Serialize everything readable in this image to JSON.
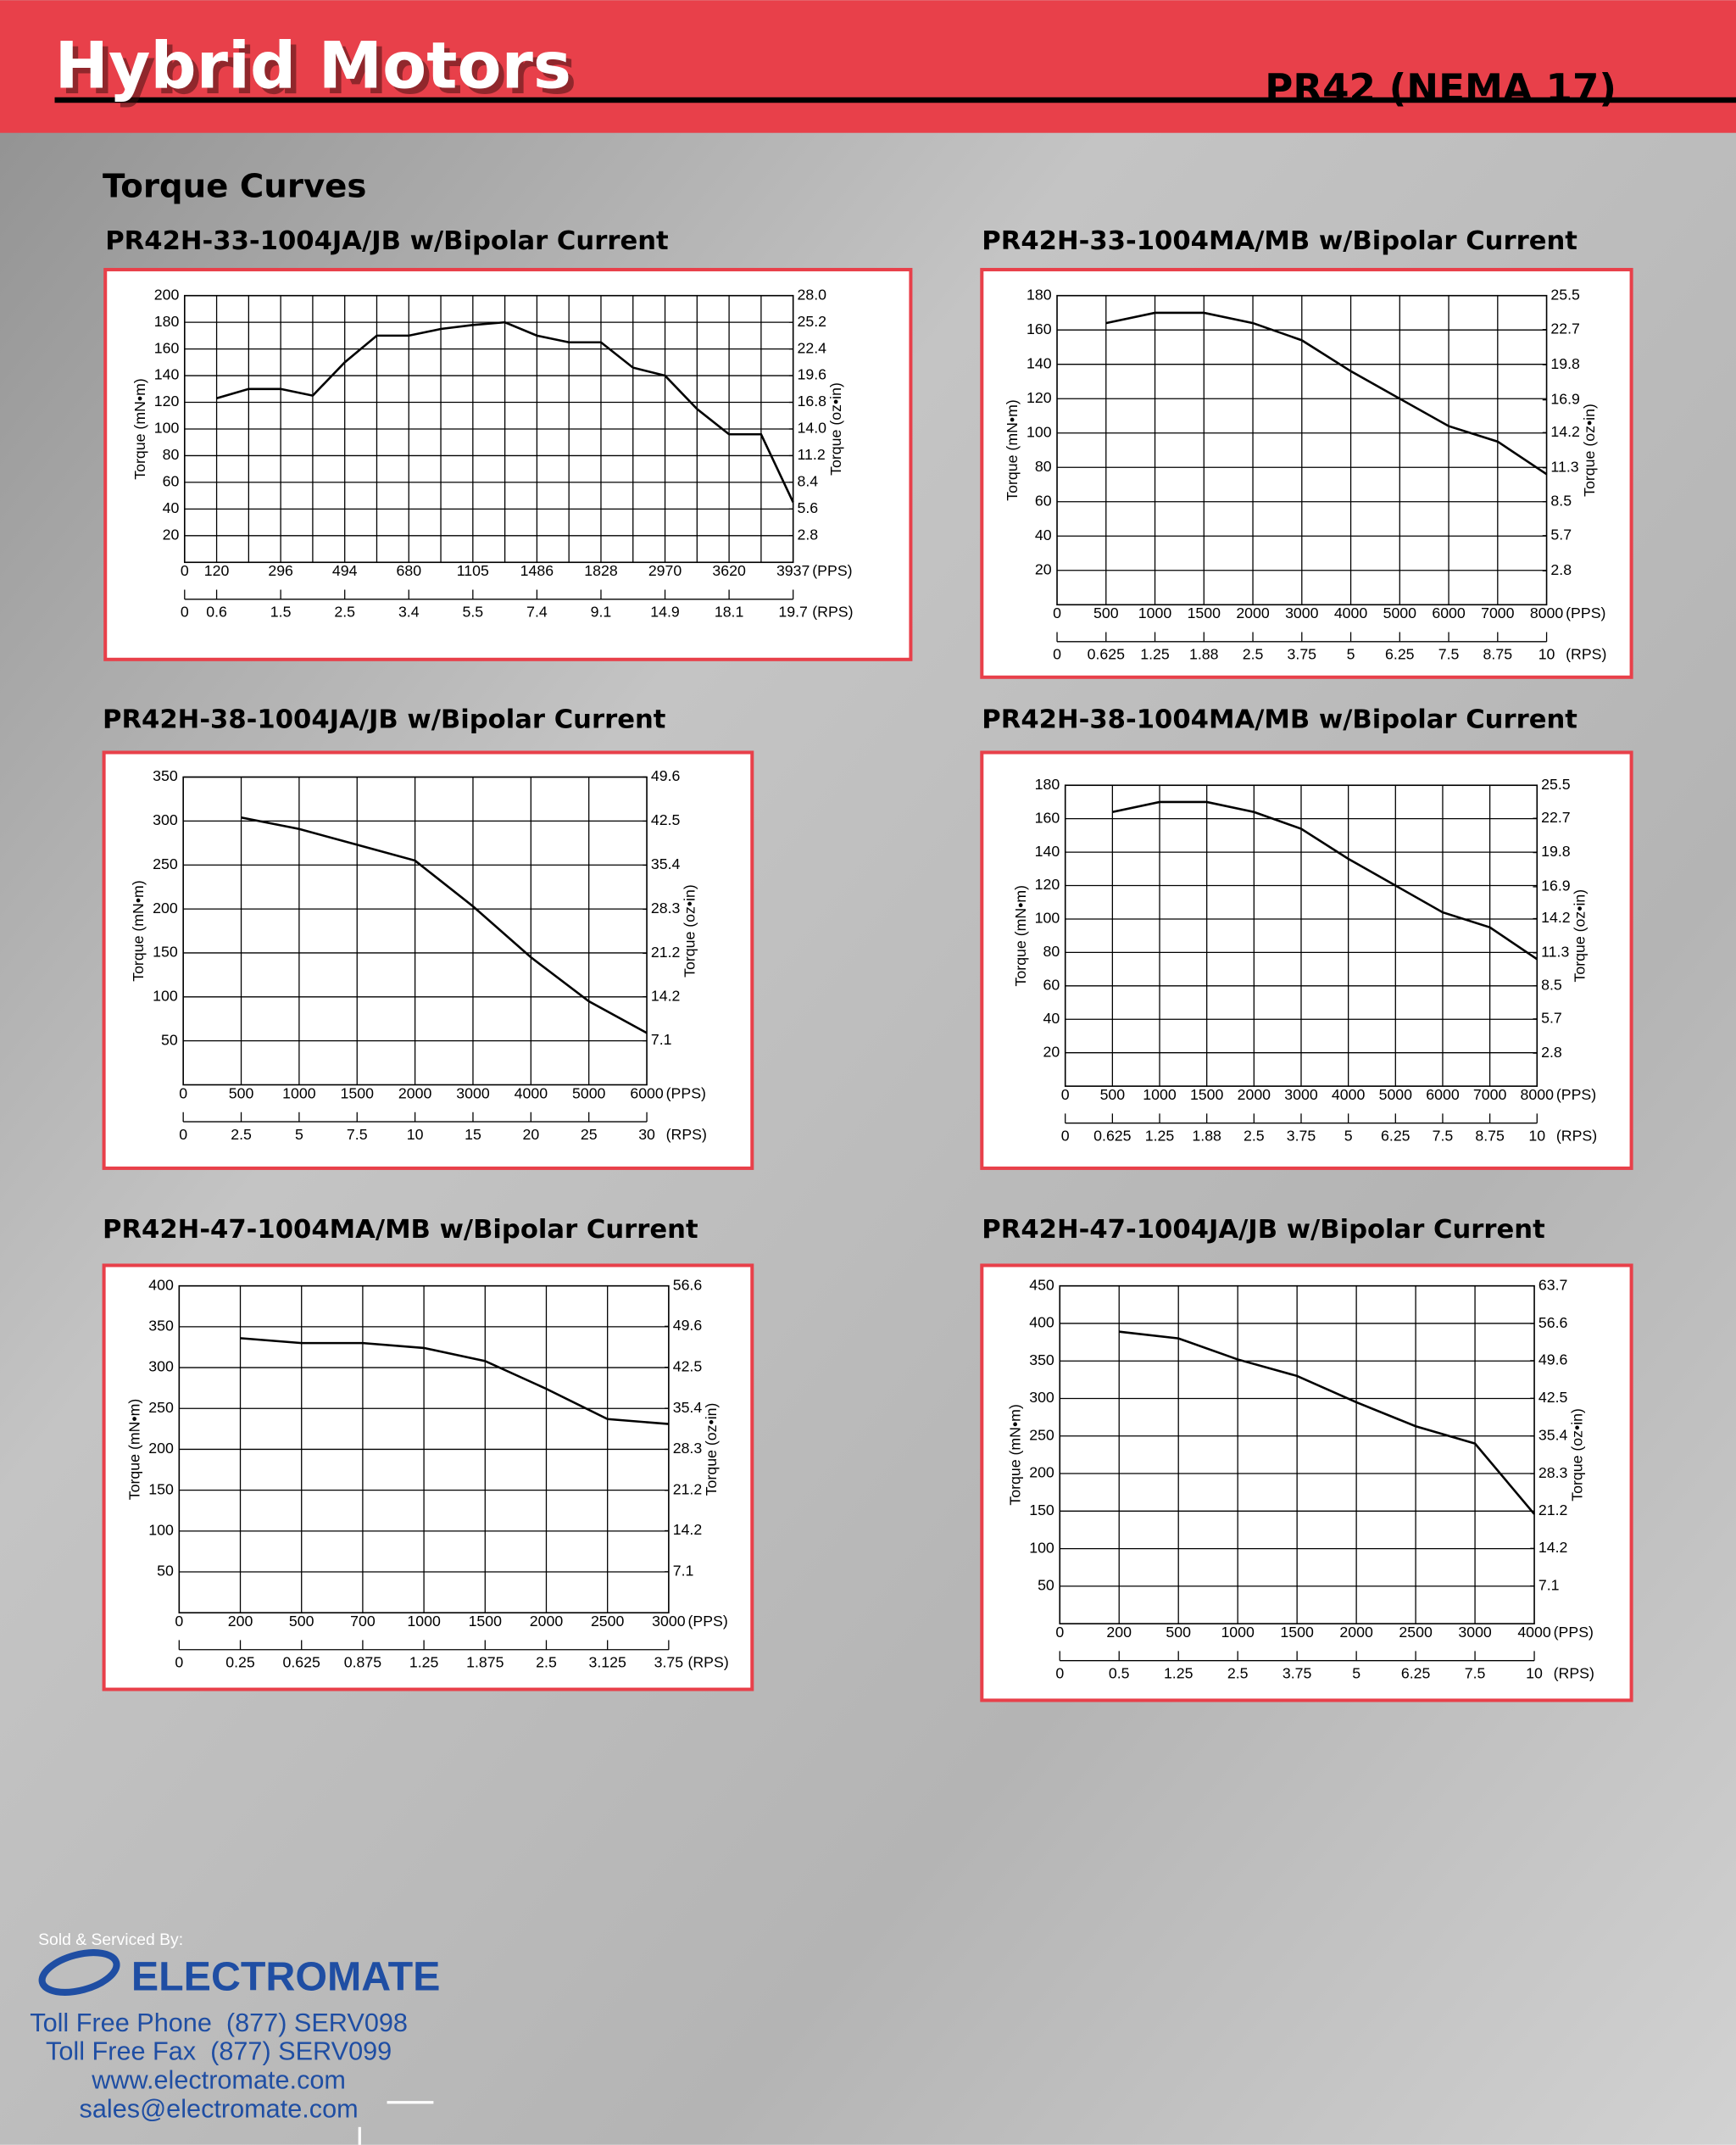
{
  "header": {
    "title": "Hybrid Motors",
    "model": "PR42 (NEMA 17)"
  },
  "section_title": "Torque Curves",
  "chart_data": [
    {
      "type": "line",
      "title": "PR42H-33-1004JA/JB w/Bipolar Current",
      "y_label": "Torque (mN•m)",
      "y2_label": "Torque (oz•in)",
      "x_unit": "(PPS)",
      "x2_unit": "(RPS)",
      "categories": [
        "0",
        "120",
        null,
        "296",
        null,
        "494",
        null,
        "680",
        null,
        "1105",
        null,
        "1486",
        null,
        "1828",
        null,
        "2970",
        null,
        "3620",
        null,
        "3937"
      ],
      "categories2": [
        "0",
        "0.6",
        null,
        "1.5",
        null,
        "2.5",
        null,
        "3.4",
        null,
        "5.5",
        null,
        "7.4",
        null,
        "9.1",
        null,
        "14.9",
        null,
        "18.1",
        null,
        "19.7"
      ],
      "values": [
        null,
        123,
        130,
        130,
        125,
        150,
        170,
        170,
        175,
        178,
        180,
        170,
        165,
        165,
        146,
        140,
        115,
        96,
        96,
        45
      ],
      "color": "#000000",
      "ylim": [
        0,
        200
      ],
      "yticks": [
        20,
        40,
        60,
        80,
        100,
        120,
        140,
        160,
        180,
        200
      ],
      "y2lim": [
        0,
        28
      ],
      "y2ticks": [
        2.8,
        5.6,
        8.4,
        11.2,
        {
          "value": 14,
          "label": "14.0"
        },
        16.8,
        19.6,
        22.4,
        25.2,
        {
          "value": 28,
          "label": "28.0"
        }
      ],
      "grid": true
    },
    {
      "type": "line",
      "title": "PR42H-33-1004MA/MB w/Bipolar Current",
      "y_label": "Torque (mN•m)",
      "y2_label": "Torque (oz•in)",
      "x_unit": "(PPS)",
      "x2_unit": "(RPS)",
      "categories": [
        "0",
        "500",
        "1000",
        "1500",
        "2000",
        "3000",
        "4000",
        "5000",
        "6000",
        "7000",
        "8000"
      ],
      "categories2": [
        "0",
        "0.625",
        "1.25",
        "1.88",
        "2.5",
        "3.75",
        "5",
        "6.25",
        "7.5",
        "8.75",
        "10"
      ],
      "values": [
        null,
        164,
        170,
        170,
        164,
        154,
        136,
        120,
        104,
        95,
        76
      ],
      "color": "#000000",
      "ylim": [
        0,
        180
      ],
      "yticks": [
        20,
        40,
        60,
        80,
        100,
        120,
        140,
        160,
        180
      ],
      "y2lim": [
        0,
        25.5
      ],
      "y2ticks": [
        2.8,
        5.7,
        8.5,
        11.3,
        14.2,
        16.9,
        19.8,
        22.7,
        25.5
      ],
      "grid": true
    },
    {
      "type": "line",
      "title": "PR42H-38-1004JA/JB w/Bipolar Current",
      "y_label": "Torque (mN•m)",
      "y2_label": "Torque (oz•in)",
      "x_unit": "(PPS)",
      "x2_unit": "(RPS)",
      "categories": [
        "0",
        "500",
        "1000",
        "1500",
        "2000",
        "3000",
        "4000",
        "5000",
        "6000"
      ],
      "categories2": [
        "0",
        "2.5",
        "5",
        "7.5",
        "10",
        "15",
        "20",
        "25",
        "30"
      ],
      "values": [
        null,
        304,
        291,
        273,
        255,
        203,
        145,
        95,
        59
      ],
      "color": "#000000",
      "ylim": [
        0,
        350
      ],
      "yticks": [
        50,
        100,
        150,
        200,
        250,
        300,
        350
      ],
      "y2lim": [
        0,
        49.6
      ],
      "y2ticks": [
        7.1,
        14.2,
        21.2,
        28.3,
        35.4,
        42.5,
        49.6
      ],
      "grid": true
    },
    {
      "type": "line",
      "title": "PR42H-38-1004MA/MB w/Bipolar Current",
      "y_label": "Torque (mN•m)",
      "y2_label": "Torque (oz•in)",
      "x_unit": "(PPS)",
      "x2_unit": "(RPS)",
      "categories": [
        "0",
        "500",
        "1000",
        "1500",
        "2000",
        "3000",
        "4000",
        "5000",
        "6000",
        "7000",
        "8000"
      ],
      "categories2": [
        "0",
        "0.625",
        "1.25",
        "1.88",
        "2.5",
        "3.75",
        "5",
        "6.25",
        "7.5",
        "8.75",
        "10"
      ],
      "values": [
        null,
        164,
        170,
        170,
        164,
        154,
        136,
        120,
        104,
        95,
        76
      ],
      "color": "#000000",
      "ylim": [
        0,
        180
      ],
      "yticks": [
        20,
        40,
        60,
        80,
        100,
        120,
        140,
        160,
        180
      ],
      "y2lim": [
        0,
        25.5
      ],
      "y2ticks": [
        2.8,
        5.7,
        8.5,
        11.3,
        14.2,
        16.9,
        19.8,
        22.7,
        25.5
      ],
      "grid": true
    },
    {
      "type": "line",
      "title": "PR42H-47-1004MA/MB w/Bipolar Current",
      "y_label": "Torque (mN•m)",
      "y2_label": "Torque (oz•in)",
      "x_unit": "(PPS)",
      "x2_unit": "(RPS)",
      "categories": [
        "0",
        "200",
        "500",
        "700",
        "1000",
        "1500",
        "2000",
        "2500",
        "3000"
      ],
      "categories2": [
        "0",
        "0.25",
        "0.625",
        "0.875",
        "1.25",
        "1.875",
        "2.5",
        "3.125",
        "3.75"
      ],
      "values": [
        null,
        336,
        330,
        330,
        324,
        308,
        274,
        237,
        231
      ],
      "color": "#000000",
      "ylim": [
        0,
        400
      ],
      "yticks": [
        50,
        100,
        150,
        200,
        250,
        300,
        350,
        400
      ],
      "y2lim": [
        0,
        56.6
      ],
      "y2ticks": [
        7.1,
        14.2,
        21.2,
        28.3,
        35.4,
        42.5,
        49.6,
        56.6
      ],
      "grid": true
    },
    {
      "type": "line",
      "title": "PR42H-47-1004JA/JB w/Bipolar Current",
      "y_label": "Torque (mN•m)",
      "y2_label": "Torque (oz•in)",
      "x_unit": "(PPS)",
      "x2_unit": "(RPS)",
      "categories": [
        "0",
        "200",
        "500",
        "1000",
        "1500",
        "2000",
        "2500",
        "3000",
        "4000"
      ],
      "categories2": [
        "0",
        "0.5",
        "1.25",
        "2.5",
        "3.75",
        "5",
        "6.25",
        "7.5",
        "10"
      ],
      "values": [
        null,
        389,
        380,
        352,
        330,
        295,
        263,
        240,
        146
      ],
      "color": "#000000",
      "ylim": [
        0,
        450
      ],
      "yticks": [
        50,
        100,
        150,
        200,
        250,
        300,
        350,
        400,
        450
      ],
      "y2lim": [
        0,
        63.7
      ],
      "y2ticks": [
        7.1,
        14.2,
        21.2,
        28.3,
        35.4,
        42.5,
        49.6,
        56.6,
        63.7
      ],
      "grid": true
    }
  ],
  "footer": {
    "sold_by": "Sold & Serviced By:",
    "company": "ELECTROMATE",
    "phone": "Toll Free Phone  (877) SERV098",
    "fax": "Toll Free Fax  (877) SERV099",
    "web": "www.electromate.com",
    "email": "sales@electromate.com"
  }
}
